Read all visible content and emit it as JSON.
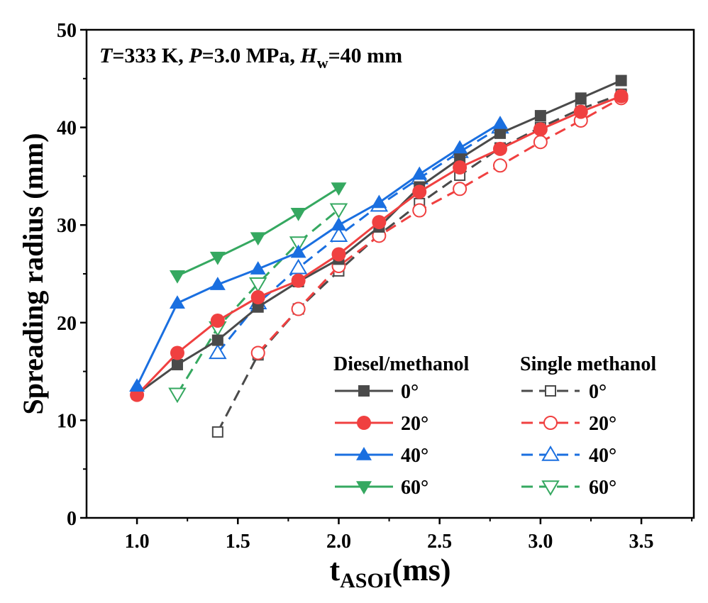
{
  "chart_data": {
    "type": "line",
    "annotation": {
      "T": "T",
      "T_val": "=333 K, ",
      "P": "P",
      "P_val": "=3.0 MPa, ",
      "H": "H",
      "H_sub": "w",
      "H_val": "=40 mm"
    },
    "xlabel": {
      "main": "t",
      "sub": "ASOI",
      "unit": "(ms)"
    },
    "ylabel": "Spreading radius (mm)",
    "xlim": [
      0.75,
      3.76
    ],
    "ylim": [
      0,
      50
    ],
    "xticks": [
      "1.0",
      "1.5",
      "2.0",
      "2.5",
      "3.0",
      "3.5"
    ],
    "yticks": [
      "0",
      "10",
      "20",
      "30",
      "40",
      "50"
    ],
    "legend_groups": [
      "Diesel/methanol",
      "Single methanol"
    ],
    "series": [
      {
        "name": "0°",
        "group": "Diesel/methanol",
        "color": "#4a4a4a",
        "marker": "square",
        "filled": true,
        "dashed": false,
        "x": [
          1.0,
          1.2,
          1.4,
          1.6,
          1.8,
          2.0,
          2.2,
          2.4,
          2.6,
          2.8,
          3.0,
          3.2,
          3.4
        ],
        "y": [
          12.7,
          15.7,
          18.2,
          21.6,
          24.2,
          26.5,
          29.8,
          33.9,
          36.8,
          39.4,
          41.2,
          43.0,
          44.8
        ]
      },
      {
        "name": "20°",
        "group": "Diesel/methanol",
        "color": "#f04040",
        "marker": "circle",
        "filled": true,
        "dashed": false,
        "x": [
          1.0,
          1.2,
          1.4,
          1.6,
          1.8,
          2.0,
          2.2,
          2.4,
          2.6,
          2.8,
          3.0,
          3.2,
          3.4
        ],
        "y": [
          12.6,
          16.9,
          20.2,
          22.6,
          24.3,
          27.0,
          30.3,
          33.4,
          35.9,
          37.8,
          39.8,
          41.6,
          43.2
        ]
      },
      {
        "name": "40°",
        "group": "Diesel/methanol",
        "color": "#1a6fe0",
        "marker": "triangle-up",
        "filled": true,
        "dashed": false,
        "x": [
          1.0,
          1.2,
          1.4,
          1.6,
          1.8,
          2.0,
          2.2,
          2.4,
          2.6,
          2.8
        ],
        "y": [
          13.5,
          22.0,
          23.9,
          25.5,
          27.2,
          30.0,
          32.3,
          35.2,
          37.9,
          40.4
        ]
      },
      {
        "name": "60°",
        "group": "Diesel/methanol",
        "color": "#35a860",
        "marker": "triangle-down",
        "filled": true,
        "dashed": false,
        "x": [
          1.2,
          1.4,
          1.6,
          1.8,
          2.0
        ],
        "y": [
          24.8,
          26.7,
          28.7,
          31.2,
          33.8
        ]
      },
      {
        "name": "0°",
        "group": "Single methanol",
        "color": "#4a4a4a",
        "marker": "square",
        "filled": false,
        "dashed": true,
        "x": [
          1.4,
          1.6,
          1.8,
          2.0,
          2.2,
          2.4,
          2.6,
          2.8,
          3.0,
          3.2,
          3.4
        ],
        "y": [
          8.8,
          16.7,
          21.4,
          25.3,
          29.0,
          32.2,
          35.1,
          37.9,
          40.0,
          41.9,
          43.4
        ]
      },
      {
        "name": "20°",
        "group": "Single methanol",
        "color": "#f04040",
        "marker": "circle",
        "filled": false,
        "dashed": true,
        "x": [
          1.6,
          1.8,
          2.0,
          2.2,
          2.4,
          2.6,
          2.8,
          3.0,
          3.2,
          3.4
        ],
        "y": [
          16.9,
          21.4,
          25.8,
          28.9,
          31.5,
          33.7,
          36.1,
          38.5,
          40.7,
          43.0
        ]
      },
      {
        "name": "40°",
        "group": "Single methanol",
        "color": "#1a6fe0",
        "marker": "triangle-up",
        "filled": false,
        "dashed": true,
        "x": [
          1.4,
          1.6,
          1.8,
          2.0,
          2.2,
          2.4,
          2.6,
          2.8
        ],
        "y": [
          16.9,
          22.0,
          25.6,
          28.9,
          32.0,
          34.8,
          37.5,
          40.0
        ]
      },
      {
        "name": "60°",
        "group": "Single methanol",
        "color": "#35a860",
        "marker": "triangle-down",
        "filled": false,
        "dashed": true,
        "x": [
          1.2,
          1.4,
          1.6,
          1.8,
          2.0
        ],
        "y": [
          12.7,
          19.5,
          24.0,
          28.2,
          31.6
        ]
      }
    ]
  }
}
